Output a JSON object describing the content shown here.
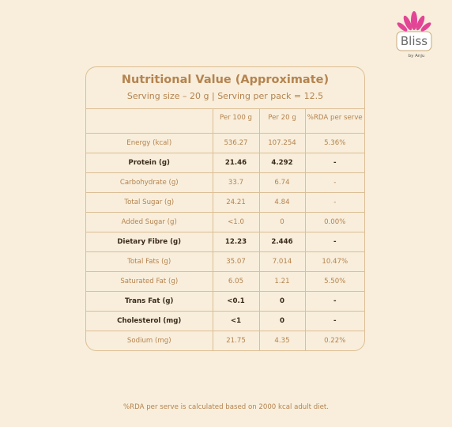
{
  "logo": {
    "name": "Bliss",
    "tagline": "by Anju"
  },
  "header": {
    "title": "Nutritional Value (Approximate)",
    "subtitle": "Serving size – 20 g | Serving per pack = 12.5"
  },
  "table": {
    "columns": [
      "Per 100 g",
      "Per 20 g",
      "%RDA per serve"
    ],
    "rows": [
      {
        "cells": [
          "Energy (kcal)",
          "536.27",
          "107.254",
          "5.36%"
        ]
      },
      {
        "cells": [
          "Protein (g)",
          "21.46",
          "4.292",
          "-"
        ],
        "bold": true
      },
      {
        "cells": [
          "Carbohydrate (g)",
          "33.7",
          "6.74",
          "-"
        ]
      },
      {
        "cells": [
          "Total Sugar (g)",
          "24.21",
          "4.84",
          "-"
        ]
      },
      {
        "cells": [
          "Added Sugar (g)",
          "<1.0",
          "0",
          "0.00%"
        ]
      },
      {
        "cells": [
          "Dietary Fibre (g)",
          "12.23",
          "2.446",
          "-"
        ],
        "bold": true
      },
      {
        "cells": [
          "Total Fats (g)",
          "35.07",
          "7.014",
          "10.47%"
        ]
      },
      {
        "cells": [
          "Saturated Fat (g)",
          "6.05",
          "1.21",
          "5.50%"
        ]
      },
      {
        "cells": [
          "Trans Fat (g)",
          "<0.1",
          "0",
          "-"
        ],
        "bold": true
      },
      {
        "cells": [
          "Cholesterol (mg)",
          "<1",
          "0",
          "-"
        ],
        "bold": true
      },
      {
        "cells": [
          "Sodium (mg)",
          "21.75",
          "4.35",
          "0.22%"
        ]
      }
    ]
  },
  "footnote": "%RDA per serve is calculated based on 2000 kcal adult diet."
}
